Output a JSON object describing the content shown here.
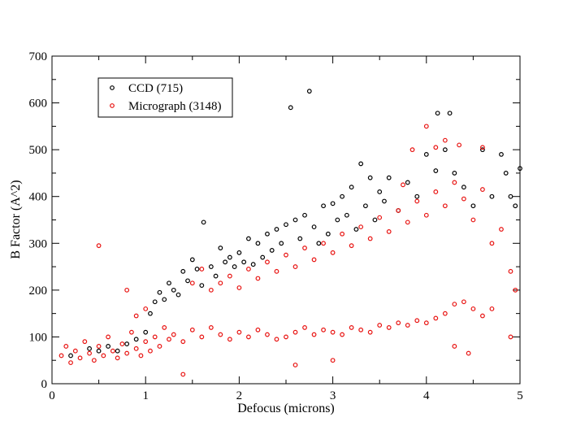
{
  "chart_data": {
    "type": "scatter",
    "title": "",
    "xlabel": "Defocus (microns)",
    "ylabel": "B Factor (A^2)",
    "xlim": [
      0,
      5
    ],
    "ylim": [
      0,
      700
    ],
    "x_ticks": [
      0,
      1,
      2,
      3,
      4,
      5
    ],
    "y_ticks": [
      0,
      100,
      200,
      300,
      400,
      500,
      600,
      700
    ],
    "grid": false,
    "legend_position": "top-left",
    "series": [
      {
        "name": "CCD (715)",
        "color": "#000000",
        "marker": "hollow-circle",
        "points": [
          [
            0.2,
            60
          ],
          [
            0.4,
            75
          ],
          [
            0.5,
            70
          ],
          [
            0.6,
            80
          ],
          [
            0.7,
            70
          ],
          [
            0.8,
            85
          ],
          [
            0.9,
            95
          ],
          [
            1.0,
            110
          ],
          [
            1.05,
            150
          ],
          [
            1.1,
            175
          ],
          [
            1.15,
            195
          ],
          [
            1.2,
            180
          ],
          [
            1.25,
            215
          ],
          [
            1.3,
            200
          ],
          [
            1.35,
            190
          ],
          [
            1.4,
            240
          ],
          [
            1.45,
            220
          ],
          [
            1.5,
            265
          ],
          [
            1.55,
            245
          ],
          [
            1.6,
            210
          ],
          [
            1.62,
            345
          ],
          [
            1.7,
            250
          ],
          [
            1.75,
            230
          ],
          [
            1.8,
            290
          ],
          [
            1.85,
            260
          ],
          [
            1.9,
            270
          ],
          [
            1.95,
            250
          ],
          [
            2.0,
            280
          ],
          [
            2.05,
            260
          ],
          [
            2.1,
            310
          ],
          [
            2.15,
            255
          ],
          [
            2.2,
            300
          ],
          [
            2.25,
            270
          ],
          [
            2.3,
            320
          ],
          [
            2.35,
            285
          ],
          [
            2.4,
            330
          ],
          [
            2.45,
            300
          ],
          [
            2.5,
            340
          ],
          [
            2.55,
            590
          ],
          [
            2.6,
            350
          ],
          [
            2.65,
            310
          ],
          [
            2.7,
            360
          ],
          [
            2.75,
            625
          ],
          [
            2.8,
            335
          ],
          [
            2.85,
            300
          ],
          [
            2.9,
            380
          ],
          [
            2.95,
            320
          ],
          [
            3.0,
            385
          ],
          [
            3.05,
            350
          ],
          [
            3.1,
            400
          ],
          [
            3.15,
            360
          ],
          [
            3.2,
            420
          ],
          [
            3.25,
            330
          ],
          [
            3.3,
            470
          ],
          [
            3.35,
            380
          ],
          [
            3.4,
            440
          ],
          [
            3.45,
            350
          ],
          [
            3.5,
            410
          ],
          [
            3.55,
            390
          ],
          [
            3.6,
            440
          ],
          [
            3.7,
            370
          ],
          [
            3.8,
            430
          ],
          [
            3.9,
            400
          ],
          [
            4.0,
            490
          ],
          [
            4.1,
            455
          ],
          [
            4.12,
            578
          ],
          [
            4.2,
            500
          ],
          [
            4.25,
            578
          ],
          [
            4.3,
            450
          ],
          [
            4.4,
            420
          ],
          [
            4.5,
            380
          ],
          [
            4.6,
            500
          ],
          [
            4.7,
            400
          ],
          [
            4.8,
            490
          ],
          [
            4.85,
            450
          ],
          [
            4.9,
            400
          ],
          [
            4.95,
            380
          ],
          [
            5.0,
            460
          ]
        ]
      },
      {
        "name": "Micrograph (3148)",
        "color": "#e8110f",
        "marker": "hollow-circle",
        "points": [
          [
            0.1,
            60
          ],
          [
            0.15,
            80
          ],
          [
            0.2,
            45
          ],
          [
            0.25,
            70
          ],
          [
            0.3,
            55
          ],
          [
            0.35,
            90
          ],
          [
            0.4,
            65
          ],
          [
            0.45,
            50
          ],
          [
            0.5,
            80
          ],
          [
            0.5,
            295
          ],
          [
            0.55,
            60
          ],
          [
            0.6,
            100
          ],
          [
            0.65,
            70
          ],
          [
            0.7,
            55
          ],
          [
            0.75,
            85
          ],
          [
            0.8,
            65
          ],
          [
            0.85,
            110
          ],
          [
            0.9,
            75
          ],
          [
            0.95,
            60
          ],
          [
            1.0,
            90
          ],
          [
            1.05,
            70
          ],
          [
            1.1,
            100
          ],
          [
            1.15,
            80
          ],
          [
            1.2,
            120
          ],
          [
            1.25,
            95
          ],
          [
            1.3,
            105
          ],
          [
            1.4,
            90
          ],
          [
            1.5,
            115
          ],
          [
            1.6,
            100
          ],
          [
            1.7,
            120
          ],
          [
            1.8,
            105
          ],
          [
            1.9,
            95
          ],
          [
            2.0,
            110
          ],
          [
            2.1,
            100
          ],
          [
            2.2,
            115
          ],
          [
            2.3,
            105
          ],
          [
            2.4,
            95
          ],
          [
            2.5,
            100
          ],
          [
            2.6,
            110
          ],
          [
            2.7,
            120
          ],
          [
            2.8,
            105
          ],
          [
            2.9,
            115
          ],
          [
            3.0,
            110
          ],
          [
            3.1,
            105
          ],
          [
            3.2,
            120
          ],
          [
            3.3,
            115
          ],
          [
            3.4,
            110
          ],
          [
            3.5,
            125
          ],
          [
            3.6,
            120
          ],
          [
            3.7,
            130
          ],
          [
            3.8,
            125
          ],
          [
            3.9,
            135
          ],
          [
            4.0,
            130
          ],
          [
            4.1,
            140
          ],
          [
            4.2,
            150
          ],
          [
            4.3,
            170
          ],
          [
            4.4,
            175
          ],
          [
            4.5,
            160
          ],
          [
            4.6,
            145
          ],
          [
            4.7,
            160
          ],
          [
            1.7,
            200
          ],
          [
            1.8,
            215
          ],
          [
            1.9,
            230
          ],
          [
            2.0,
            205
          ],
          [
            2.1,
            245
          ],
          [
            2.2,
            225
          ],
          [
            2.3,
            260
          ],
          [
            2.4,
            240
          ],
          [
            2.5,
            275
          ],
          [
            2.6,
            250
          ],
          [
            2.7,
            290
          ],
          [
            2.8,
            265
          ],
          [
            2.9,
            300
          ],
          [
            3.0,
            280
          ],
          [
            3.1,
            320
          ],
          [
            3.2,
            295
          ],
          [
            3.3,
            335
          ],
          [
            3.4,
            310
          ],
          [
            3.5,
            355
          ],
          [
            3.6,
            325
          ],
          [
            3.7,
            370
          ],
          [
            3.8,
            345
          ],
          [
            3.9,
            390
          ],
          [
            4.0,
            360
          ],
          [
            4.1,
            410
          ],
          [
            4.2,
            380
          ],
          [
            4.3,
            430
          ],
          [
            4.4,
            395
          ],
          [
            4.5,
            350
          ],
          [
            4.6,
            415
          ],
          [
            4.7,
            300
          ],
          [
            4.8,
            330
          ],
          [
            4.9,
            240
          ],
          [
            4.95,
            200
          ],
          [
            3.75,
            425
          ],
          [
            3.85,
            500
          ],
          [
            4.0,
            550
          ],
          [
            4.1,
            505
          ],
          [
            4.2,
            520
          ],
          [
            4.35,
            510
          ],
          [
            4.6,
            505
          ],
          [
            0.8,
            200
          ],
          [
            1.0,
            160
          ],
          [
            0.9,
            145
          ],
          [
            1.6,
            245
          ],
          [
            1.5,
            215
          ],
          [
            3.0,
            50
          ],
          [
            2.6,
            40
          ],
          [
            1.4,
            20
          ],
          [
            4.45,
            65
          ],
          [
            4.3,
            80
          ],
          [
            4.9,
            100
          ]
        ]
      }
    ]
  }
}
